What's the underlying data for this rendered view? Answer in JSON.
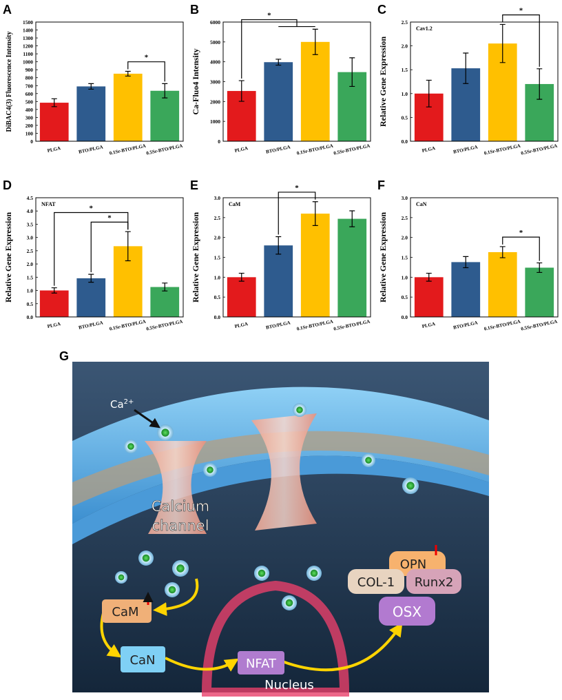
{
  "chart_data": [
    {
      "type": "bar",
      "panel": "A",
      "ylabel": "DiBAC4(3) Fluorescence Intensity",
      "categories": [
        "PLGA",
        "BTO/PLGA",
        "0.1Sr-BTO/PLGA",
        "0.5Sr-BTO/PLGA"
      ],
      "values": [
        485,
        690,
        850,
        635
      ],
      "errors": [
        50,
        35,
        30,
        90
      ],
      "colors": [
        "#e31a1c",
        "#2e5b8e",
        "#ffc000",
        "#3aa75a"
      ],
      "ylim": [
        0,
        1500
      ],
      "yticks": [
        0,
        100,
        200,
        300,
        400,
        500,
        600,
        700,
        800,
        900,
        1000,
        1100,
        1200,
        1300,
        1400,
        1500
      ],
      "significance": [
        {
          "from": 2,
          "to": 3,
          "label": "*"
        }
      ]
    },
    {
      "type": "bar",
      "panel": "B",
      "ylabel": "Ca-Fluo4 Intensity",
      "categories": [
        "PLGA",
        "BTO/PLGA",
        "0.1Sr-BTO/PLGA",
        "0.5Sr-BTO/PLGA"
      ],
      "values": [
        2530,
        3980,
        5000,
        3480
      ],
      "errors": [
        520,
        150,
        640,
        720
      ],
      "colors": [
        "#e31a1c",
        "#2e5b8e",
        "#ffc000",
        "#3aa75a"
      ],
      "ylim": [
        0,
        6000
      ],
      "yticks": [
        0,
        1000,
        2000,
        3000,
        4000,
        5000,
        6000
      ],
      "significance": [
        {
          "from": 0,
          "to": [
            1,
            2
          ],
          "label": "*"
        }
      ]
    },
    {
      "type": "bar",
      "panel": "C",
      "ylabel": "Relative Gene Expression",
      "annotation": "Cav1.2",
      "categories": [
        "PLGA",
        "BTO/PLGA",
        "0.1Sr-BTO/PLGA",
        "0.5Sr-BTO/PLGA"
      ],
      "values": [
        1.0,
        1.53,
        2.05,
        1.2
      ],
      "errors": [
        0.28,
        0.32,
        0.4,
        0.32
      ],
      "colors": [
        "#e31a1c",
        "#2e5b8e",
        "#ffc000",
        "#3aa75a"
      ],
      "ylim": [
        0,
        2.5
      ],
      "yticks": [
        {
          "value": 0,
          "label": "0.0"
        },
        0.5,
        {
          "value": 1,
          "label": "1.0"
        },
        1.5,
        {
          "value": 2,
          "label": "2.0"
        },
        2.5
      ],
      "significance": [
        {
          "from": 2,
          "to": 3,
          "label": "*"
        }
      ]
    },
    {
      "type": "bar",
      "panel": "D",
      "ylabel": "Relative Gene Expression",
      "annotation": "NFAT",
      "categories": [
        "PLGA",
        "BTO/PLGA",
        "0.1Sr-BTO/PLGA",
        "0.5Sr-BTO/PLGA"
      ],
      "values": [
        1.0,
        1.46,
        2.67,
        1.13
      ],
      "errors": [
        0.1,
        0.15,
        0.55,
        0.15
      ],
      "colors": [
        "#e31a1c",
        "#2e5b8e",
        "#ffc000",
        "#3aa75a"
      ],
      "ylim": [
        0,
        4.5
      ],
      "yticks": [
        {
          "value": 0,
          "label": "0.0"
        },
        0.5,
        {
          "value": 1,
          "label": "1.0"
        },
        1.5,
        {
          "value": 2,
          "label": "2.0"
        },
        2.5,
        {
          "value": 3,
          "label": "3.0"
        },
        3.5,
        {
          "value": 4,
          "label": "4.0"
        },
        4.5
      ],
      "significance": [
        {
          "from": 0,
          "to": 2,
          "label": "*"
        },
        {
          "from": 1,
          "to": 2,
          "label": "*"
        }
      ]
    },
    {
      "type": "bar",
      "panel": "E",
      "ylabel": "Relative Gene Expression",
      "annotation": "CaM",
      "categories": [
        "PLGA",
        "BTO/PLGA",
        "0.1Sr-BTO/PLGA",
        "0.5Sr-BTO/PLGA"
      ],
      "values": [
        1.0,
        1.8,
        2.6,
        2.47
      ],
      "errors": [
        0.1,
        0.22,
        0.3,
        0.2
      ],
      "colors": [
        "#e31a1c",
        "#2e5b8e",
        "#ffc000",
        "#3aa75a"
      ],
      "ylim": [
        0,
        3
      ],
      "yticks": [
        {
          "value": 0,
          "label": "0.0"
        },
        0.5,
        {
          "value": 1,
          "label": "1.0"
        },
        1.5,
        {
          "value": 2,
          "label": "2.0"
        },
        2.5,
        {
          "value": 3,
          "label": "3.0"
        }
      ],
      "significance": [
        {
          "from": 1,
          "to": 2,
          "label": "*"
        }
      ]
    },
    {
      "type": "bar",
      "panel": "F",
      "ylabel": "Relative Gene Expression",
      "annotation": "CaN",
      "categories": [
        "PLGA",
        "BTO/PLGA",
        "0.1Sr-BTO/PLGA",
        "0.5Sr-BTO/PLGA"
      ],
      "values": [
        1.0,
        1.38,
        1.63,
        1.24
      ],
      "errors": [
        0.1,
        0.14,
        0.14,
        0.12
      ],
      "colors": [
        "#e31a1c",
        "#2e5b8e",
        "#ffc000",
        "#3aa75a"
      ],
      "ylim": [
        0,
        3
      ],
      "yticks": [
        {
          "value": 0,
          "label": "0.0"
        },
        0.5,
        {
          "value": 1,
          "label": "1.0"
        },
        1.5,
        {
          "value": 2,
          "label": "2.0"
        },
        2.5,
        {
          "value": 3,
          "label": "3.0"
        }
      ],
      "significance": [
        {
          "from": 2,
          "to": 3,
          "label": "*"
        }
      ]
    }
  ],
  "diagram": {
    "panel": "G",
    "ion": "Ca",
    "ion_charge": "2+",
    "channel_label": [
      "Calcium",
      "channel"
    ],
    "cam": "CaM",
    "can": "CaN",
    "nfat": "NFAT",
    "nucleus": "Nucleus",
    "opn": "OPN",
    "col1": "COL-1",
    "runx2": "Runx2",
    "osx": "OSX"
  }
}
